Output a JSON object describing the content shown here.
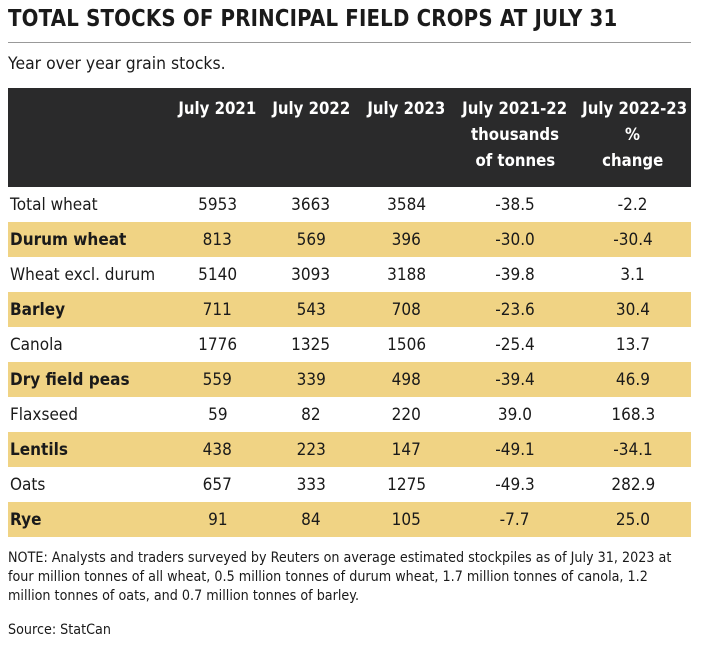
{
  "title": "TOTAL STOCKS OF PRINCIPAL FIELD CROPS AT JULY 31",
  "subtitle": "Year over year grain stocks.",
  "chart_data": {
    "type": "table",
    "columns": [
      {
        "lines": [
          "July 2021"
        ]
      },
      {
        "lines": [
          "July 2022"
        ]
      },
      {
        "lines": [
          "July 2023"
        ]
      },
      {
        "lines": [
          "July 2021-22",
          "thousands",
          "of tonnes"
        ]
      },
      {
        "lines": [
          "July 2022-23",
          "%",
          "change"
        ]
      }
    ],
    "rows": [
      {
        "label": "Total wheat",
        "values": [
          "5953",
          "3663",
          "3584",
          "-38.5",
          "-2.2"
        ]
      },
      {
        "label": "Durum wheat",
        "values": [
          "813",
          "569",
          "396",
          "-30.0",
          "-30.4"
        ]
      },
      {
        "label": "Wheat excl. durum",
        "values": [
          "5140",
          "3093",
          "3188",
          "-39.8",
          "3.1"
        ]
      },
      {
        "label": "Barley",
        "values": [
          "711",
          "543",
          "708",
          "-23.6",
          "30.4"
        ]
      },
      {
        "label": "Canola",
        "values": [
          "1776",
          "1325",
          "1506",
          "-25.4",
          "13.7"
        ]
      },
      {
        "label": "Dry field peas",
        "values": [
          "559",
          "339",
          "498",
          "-39.4",
          "46.9"
        ]
      },
      {
        "label": "Flaxseed",
        "values": [
          "59",
          "82",
          "220",
          "39.0",
          "168.3"
        ]
      },
      {
        "label": "Lentils",
        "values": [
          "438",
          "223",
          "147",
          "-49.1",
          "-34.1"
        ]
      },
      {
        "label": "Oats",
        "values": [
          "657",
          "333",
          "1275",
          "-49.3",
          "282.9"
        ]
      },
      {
        "label": "Rye",
        "values": [
          "91",
          "84",
          "105",
          "-7.7",
          "25.0"
        ]
      }
    ]
  },
  "note": "NOTE: Analysts and traders surveyed by Reuters on average estimated stockpiles as of July 31, 2023 at four million tonnes of all wheat, 0.5 million tonnes of durum wheat, 1.7 million tonnes of canola, 1.2 million tonnes of oats, and 0.7 million tonnes of barley.",
  "source": "Source: StatCan",
  "colors": {
    "header_background": "#2a2a2b",
    "header_text": "#ffffff",
    "alternate_row": "#f0d384",
    "rule": "#999999"
  }
}
